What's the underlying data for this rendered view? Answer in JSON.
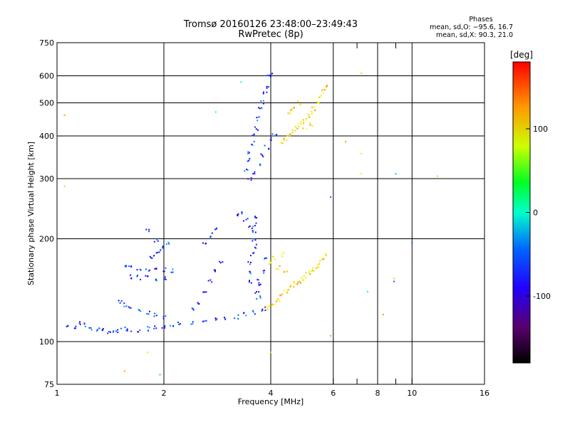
{
  "chart_data": {
    "type": "scatter",
    "title": "Tromsø 20160126 23:48:00–23:49:43",
    "subtitle": "RwPretec (8p)",
    "xlabel": "Frequency [MHz]",
    "ylabel": "Stationary phase Virtual Height [km]",
    "x_scale": "log",
    "y_scale": "log",
    "xlim": [
      1,
      16
    ],
    "ylim": [
      75,
      750
    ],
    "x_ticks": [
      1,
      2,
      4,
      6,
      8,
      10,
      16
    ],
    "x_tick_labels": [
      "1",
      "2",
      "4",
      "6",
      "8",
      "10",
      "16"
    ],
    "x_minor_ticks": [
      7,
      9
    ],
    "x_gridlines": [
      2,
      4,
      6,
      8,
      10
    ],
    "y_ticks": [
      75,
      100,
      200,
      300,
      400,
      500,
      600,
      750
    ],
    "y_tick_labels": [
      "75",
      "100",
      "200",
      "300",
      "400",
      "500",
      "600",
      "750"
    ],
    "y_gridlines": [
      100,
      200,
      300,
      400,
      500,
      600
    ],
    "grid": true,
    "colorbar": {
      "label": "[deg]",
      "range": [
        -180,
        180
      ],
      "ticks": [
        100,
        0,
        -100
      ],
      "tick_labels": [
        "100",
        "0",
        "-100"
      ],
      "colormap": "rainbow (black → purple → blue → cyan → green → yellow → orange → red)"
    },
    "stats": {
      "header": "Phases",
      "line1": "mean, sd,O: −95.6, 16.7",
      "line2": "mean, sd,X: 90.3, 21.0"
    },
    "series": [
      {
        "description": "O-mode E/F1 trace",
        "phase_mean": -95.6,
        "points": [
          [
            1.08,
            112
          ],
          [
            1.12,
            110
          ],
          [
            1.15,
            113
          ],
          [
            1.2,
            112
          ],
          [
            1.25,
            109
          ],
          [
            1.3,
            108
          ],
          [
            1.35,
            108
          ],
          [
            1.4,
            107
          ],
          [
            1.45,
            107
          ],
          [
            1.5,
            108
          ],
          [
            1.55,
            109
          ],
          [
            1.6,
            108
          ],
          [
            1.7,
            108
          ],
          [
            1.8,
            109
          ],
          [
            1.9,
            110
          ],
          [
            2.0,
            111
          ],
          [
            2.1,
            112
          ],
          [
            2.2,
            113
          ],
          [
            2.4,
            114
          ],
          [
            2.6,
            115
          ],
          [
            2.8,
            116
          ],
          [
            3.0,
            117
          ],
          [
            3.2,
            118
          ],
          [
            3.4,
            120
          ],
          [
            3.6,
            122
          ],
          [
            3.8,
            124
          ],
          [
            3.9,
            125
          ],
          [
            1.5,
            130
          ],
          [
            1.55,
            128
          ],
          [
            1.6,
            126
          ],
          [
            1.7,
            124
          ],
          [
            1.8,
            122
          ],
          [
            1.9,
            120
          ],
          [
            2.0,
            118
          ],
          [
            1.55,
            165
          ],
          [
            1.6,
            164
          ],
          [
            1.7,
            163
          ],
          [
            1.8,
            162
          ],
          [
            1.9,
            162
          ],
          [
            2.0,
            162
          ],
          [
            2.1,
            161
          ],
          [
            1.6,
            155
          ],
          [
            1.7,
            154
          ],
          [
            1.8,
            154
          ],
          [
            1.9,
            153
          ],
          [
            2.0,
            153
          ],
          [
            1.85,
            175
          ],
          [
            1.9,
            180
          ],
          [
            1.95,
            185
          ],
          [
            2.0,
            190
          ],
          [
            2.05,
            195
          ],
          [
            1.9,
            198
          ],
          [
            1.8,
            210
          ],
          [
            2.4,
            125
          ],
          [
            2.5,
            130
          ],
          [
            2.6,
            140
          ],
          [
            2.7,
            150
          ],
          [
            2.8,
            160
          ],
          [
            2.9,
            170
          ],
          [
            2.6,
            195
          ],
          [
            2.7,
            205
          ],
          [
            2.8,
            215
          ],
          [
            3.2,
            235
          ],
          [
            3.3,
            240
          ],
          [
            3.4,
            228
          ],
          [
            3.5,
            215
          ],
          [
            3.5,
            150
          ],
          [
            3.5,
            160
          ],
          [
            3.5,
            170
          ],
          [
            3.55,
            180
          ],
          [
            3.6,
            190
          ],
          [
            3.6,
            200
          ],
          [
            3.6,
            210
          ],
          [
            3.6,
            220
          ],
          [
            3.6,
            230
          ],
          [
            3.65,
            140
          ],
          [
            3.7,
            150
          ],
          [
            3.7,
            135
          ],
          [
            3.75,
            145
          ],
          [
            3.8,
            160
          ],
          [
            3.85,
            175
          ],
          [
            3.4,
            320
          ],
          [
            3.45,
            340
          ],
          [
            3.5,
            360
          ],
          [
            3.55,
            380
          ],
          [
            3.6,
            400
          ],
          [
            3.65,
            420
          ],
          [
            3.7,
            450
          ],
          [
            3.75,
            480
          ],
          [
            3.8,
            500
          ],
          [
            3.85,
            530
          ],
          [
            3.9,
            560
          ],
          [
            3.95,
            600
          ],
          [
            4.0,
            610
          ],
          [
            3.5,
            300
          ],
          [
            3.6,
            310
          ],
          [
            3.7,
            330
          ],
          [
            3.8,
            350
          ],
          [
            3.9,
            370
          ],
          [
            4.0,
            390
          ],
          [
            4.1,
            400
          ]
        ]
      },
      {
        "description": "X-mode trace",
        "phase_mean": 90.3,
        "points": [
          [
            3.9,
            125
          ],
          [
            4.0,
            128
          ],
          [
            4.1,
            130
          ],
          [
            4.2,
            133
          ],
          [
            4.3,
            136
          ],
          [
            4.4,
            140
          ],
          [
            4.5,
            143
          ],
          [
            4.6,
            146
          ],
          [
            4.7,
            148
          ],
          [
            4.8,
            150
          ],
          [
            4.9,
            152
          ],
          [
            5.0,
            155
          ],
          [
            5.1,
            158
          ],
          [
            5.2,
            160
          ],
          [
            5.3,
            163
          ],
          [
            5.4,
            166
          ],
          [
            5.5,
            170
          ],
          [
            5.6,
            175
          ],
          [
            5.7,
            180
          ],
          [
            4.0,
            170
          ],
          [
            4.1,
            175
          ],
          [
            4.2,
            165
          ],
          [
            4.3,
            180
          ],
          [
            4.4,
            160
          ],
          [
            4.3,
            380
          ],
          [
            4.4,
            390
          ],
          [
            4.5,
            400
          ],
          [
            4.6,
            410
          ],
          [
            4.7,
            420
          ],
          [
            4.8,
            430
          ],
          [
            4.9,
            440
          ],
          [
            5.0,
            450
          ],
          [
            5.1,
            460
          ],
          [
            5.2,
            470
          ],
          [
            5.3,
            480
          ],
          [
            5.4,
            500
          ],
          [
            5.5,
            520
          ],
          [
            5.6,
            540
          ],
          [
            5.7,
            560
          ],
          [
            4.5,
            470
          ],
          [
            4.6,
            480
          ],
          [
            4.8,
            500
          ],
          [
            5.0,
            420
          ],
          [
            5.2,
            430
          ]
        ]
      },
      {
        "description": "isolated points",
        "points": [
          [
            1.05,
            460
          ],
          [
            1.05,
            285
          ],
          [
            1.55,
            82
          ],
          [
            1.95,
            80
          ],
          [
            1.8,
            93
          ],
          [
            2.8,
            470
          ],
          [
            3.3,
            575
          ],
          [
            4.0,
            93
          ],
          [
            5.9,
            104
          ],
          [
            5.9,
            265
          ],
          [
            6.5,
            385
          ],
          [
            7.2,
            610
          ],
          [
            7.2,
            355
          ],
          [
            7.2,
            310
          ],
          [
            8.3,
            120
          ],
          [
            9.0,
            310
          ],
          [
            10.0,
            195
          ],
          [
            8.9,
            153
          ],
          [
            11.8,
            305
          ],
          [
            7.5,
            140
          ],
          [
            8.9,
            150
          ]
        ]
      }
    ]
  }
}
